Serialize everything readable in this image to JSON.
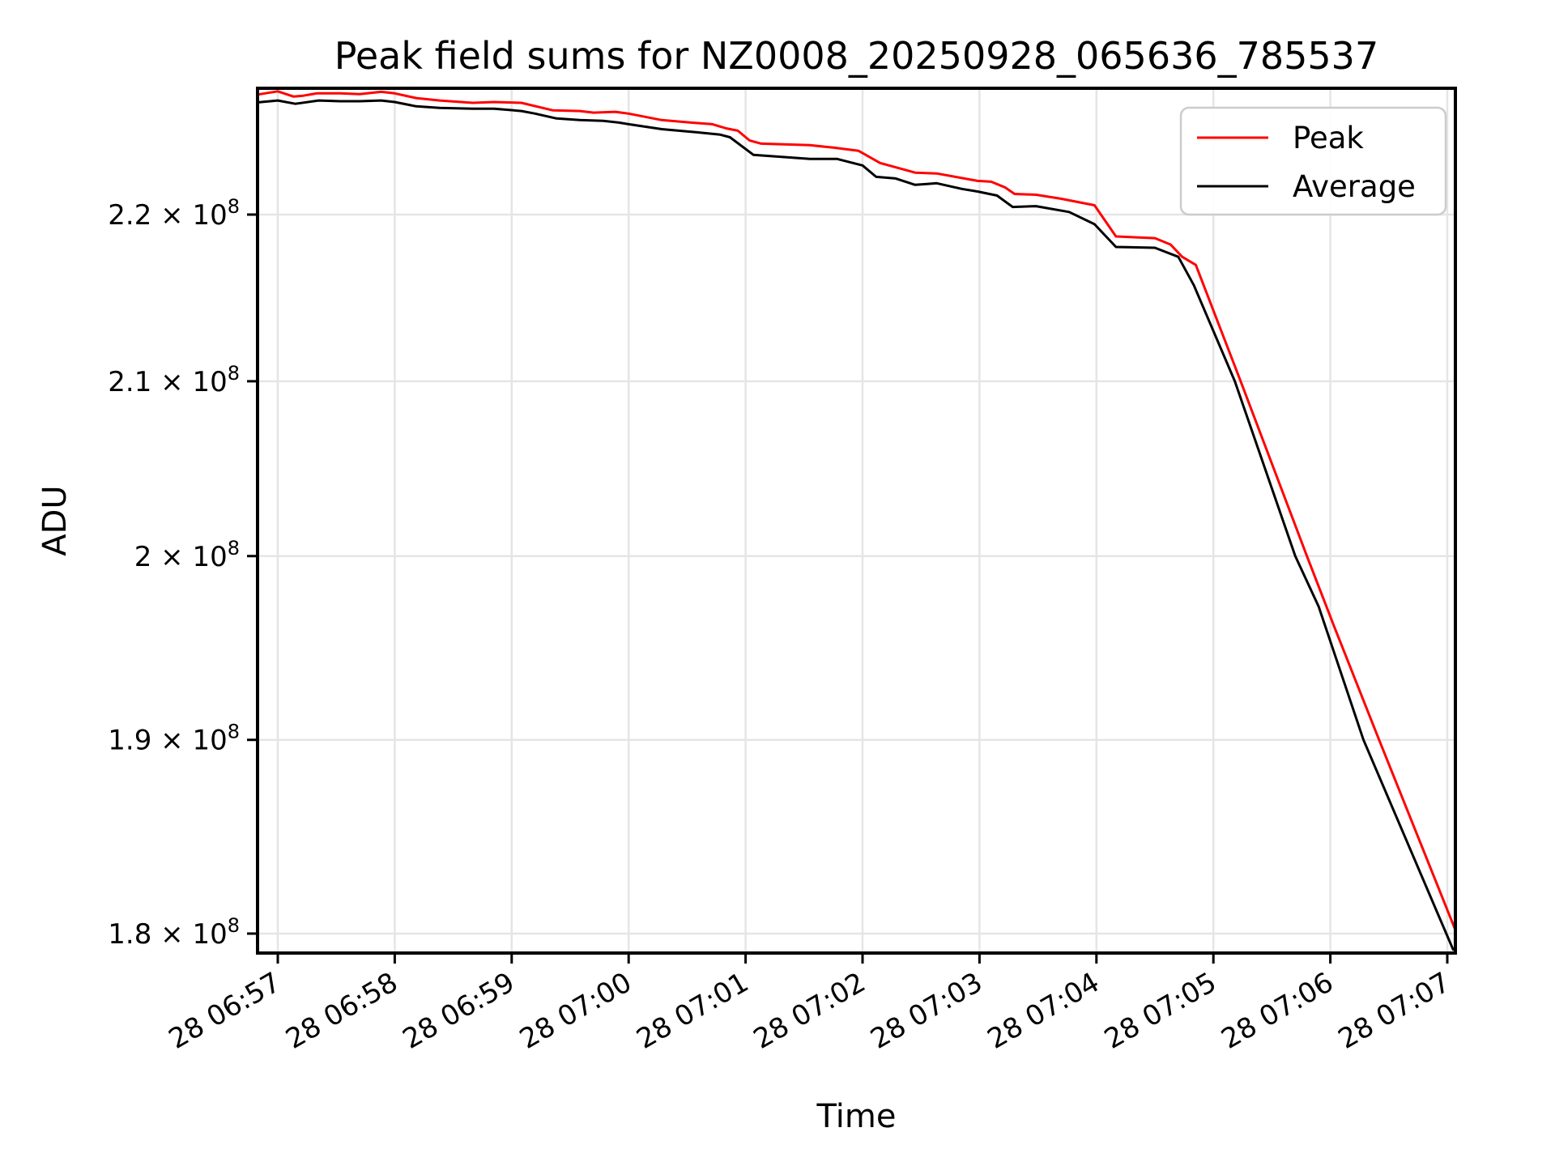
{
  "title": "Peak field sums for NZ0008_20250928_065636_785537",
  "xlabel": "Time",
  "ylabel": "ADU",
  "colors": {
    "peak_line": "#ff0000",
    "average_line": "#000000",
    "grid": "#e5e5e5",
    "spine": "#000000",
    "legend_border": "#cccccc",
    "legend_bg": "#ffffff"
  },
  "legend": {
    "position": "upper right",
    "items": [
      {
        "label": "Peak",
        "color": "#ff0000"
      },
      {
        "label": "Average",
        "color": "#000000"
      }
    ]
  },
  "chart_data": {
    "type": "line",
    "title": "Peak field sums for NZ0008_20250928_065636_785537",
    "xlabel": "Time",
    "ylabel": "ADU",
    "yscale": "log",
    "grid": true,
    "legend_position": "upper right",
    "ylim": [
      179000000,
      228000000
    ],
    "xlim": [
      "06:56:50",
      "07:07:04"
    ],
    "x_ticks": [
      {
        "time": "06:57:00",
        "label": "28 06:57"
      },
      {
        "time": "06:58:00",
        "label": "28 06:58"
      },
      {
        "time": "06:59:00",
        "label": "28 06:59"
      },
      {
        "time": "07:00:00",
        "label": "28 07:00"
      },
      {
        "time": "07:01:00",
        "label": "28 07:01"
      },
      {
        "time": "07:02:00",
        "label": "28 07:02"
      },
      {
        "time": "07:03:00",
        "label": "28 07:03"
      },
      {
        "time": "07:04:00",
        "label": "28 07:04"
      },
      {
        "time": "07:05:00",
        "label": "28 07:05"
      },
      {
        "time": "07:06:00",
        "label": "28 07:06"
      },
      {
        "time": "07:07:00",
        "label": "28 07:07"
      }
    ],
    "y_ticks": [
      {
        "value": 220000000,
        "mantissa": "2.2",
        "exponent": "8",
        "display": "2.2 × 10⁸"
      },
      {
        "value": 210000000,
        "mantissa": "2.1",
        "exponent": "8",
        "display": "2.1 × 10⁸"
      },
      {
        "value": 200000000,
        "mantissa": "2",
        "exponent": "8",
        "display": "2 × 10⁸"
      },
      {
        "value": 190000000,
        "mantissa": "1.9",
        "exponent": "8",
        "display": "1.9 × 10⁸"
      },
      {
        "value": 180000000,
        "mantissa": "1.8",
        "exponent": "8",
        "display": "1.8 × 10⁸"
      }
    ],
    "series": [
      {
        "name": "Peak",
        "color": "#ff0000",
        "points": [
          [
            "06:56:50",
            227500000
          ],
          [
            "06:56:55",
            227600000
          ],
          [
            "06:57:00",
            227700000
          ],
          [
            "06:57:08",
            227370000
          ],
          [
            "06:57:13",
            227420000
          ],
          [
            "06:57:20",
            227570000
          ],
          [
            "06:57:32",
            227570000
          ],
          [
            "06:57:42",
            227520000
          ],
          [
            "06:57:53",
            227670000
          ],
          [
            "06:58:00",
            227570000
          ],
          [
            "06:58:11",
            227270000
          ],
          [
            "06:58:23",
            227120000
          ],
          [
            "06:58:40",
            226970000
          ],
          [
            "06:58:51",
            227020000
          ],
          [
            "06:59:05",
            226970000
          ],
          [
            "06:59:21",
            226500000
          ],
          [
            "06:59:35",
            226450000
          ],
          [
            "06:59:42",
            226350000
          ],
          [
            "06:59:53",
            226400000
          ],
          [
            "07:00:00",
            226290000
          ],
          [
            "07:00:17",
            225880000
          ],
          [
            "07:00:32",
            225720000
          ],
          [
            "07:00:43",
            225620000
          ],
          [
            "07:00:50",
            225360000
          ],
          [
            "07:00:56",
            225210000
          ],
          [
            "07:01:02",
            224600000
          ],
          [
            "07:01:08",
            224400000
          ],
          [
            "07:01:33",
            224300000
          ],
          [
            "07:01:45",
            224150000
          ],
          [
            "07:01:58",
            223950000
          ],
          [
            "07:02:09",
            223190000
          ],
          [
            "07:02:27",
            222590000
          ],
          [
            "07:02:38",
            222540000
          ],
          [
            "07:02:59",
            222080000
          ],
          [
            "07:03:06",
            222030000
          ],
          [
            "07:03:13",
            221680000
          ],
          [
            "07:03:18",
            221270000
          ],
          [
            "07:03:29",
            221220000
          ],
          [
            "07:03:42",
            220970000
          ],
          [
            "07:03:59",
            220570000
          ],
          [
            "07:04:10",
            218660000
          ],
          [
            "07:04:30",
            218560000
          ],
          [
            "07:04:38",
            218170000
          ],
          [
            "07:04:44",
            217420000
          ],
          [
            "07:04:51",
            216930000
          ],
          [
            "07:05:14",
            210000000
          ],
          [
            "07:05:48",
            200000000
          ],
          [
            "07:06:02",
            196100000
          ],
          [
            "07:06:25",
            190000000
          ],
          [
            "07:07:04",
            180220000
          ]
        ]
      },
      {
        "name": "Average",
        "color": "#000000",
        "points": [
          [
            "06:56:50",
            227000000
          ],
          [
            "06:57:00",
            227120000
          ],
          [
            "06:57:09",
            226910000
          ],
          [
            "06:57:21",
            227120000
          ],
          [
            "06:57:32",
            227070000
          ],
          [
            "06:57:42",
            227070000
          ],
          [
            "06:57:53",
            227120000
          ],
          [
            "06:58:00",
            227020000
          ],
          [
            "06:58:11",
            226750000
          ],
          [
            "06:58:23",
            226650000
          ],
          [
            "06:58:40",
            226600000
          ],
          [
            "06:58:51",
            226600000
          ],
          [
            "06:59:05",
            226450000
          ],
          [
            "06:59:12",
            226290000
          ],
          [
            "06:59:23",
            225980000
          ],
          [
            "06:59:35",
            225880000
          ],
          [
            "06:59:47",
            225830000
          ],
          [
            "06:59:55",
            225720000
          ],
          [
            "07:00:00",
            225620000
          ],
          [
            "07:00:17",
            225310000
          ],
          [
            "07:00:35",
            225110000
          ],
          [
            "07:00:47",
            224960000
          ],
          [
            "07:00:52",
            224800000
          ],
          [
            "07:01:04",
            223700000
          ],
          [
            "07:01:33",
            223440000
          ],
          [
            "07:01:47",
            223440000
          ],
          [
            "07:02:00",
            223040000
          ],
          [
            "07:02:07",
            222330000
          ],
          [
            "07:02:17",
            222230000
          ],
          [
            "07:02:27",
            221830000
          ],
          [
            "07:02:38",
            221930000
          ],
          [
            "07:02:51",
            221580000
          ],
          [
            "07:02:59",
            221420000
          ],
          [
            "07:03:09",
            221170000
          ],
          [
            "07:03:17",
            220470000
          ],
          [
            "07:03:29",
            220520000
          ],
          [
            "07:03:46",
            220160000
          ],
          [
            "07:03:59",
            219410000
          ],
          [
            "07:04:10",
            218020000
          ],
          [
            "07:04:30",
            217970000
          ],
          [
            "07:04:42",
            217420000
          ],
          [
            "07:04:50",
            215700000
          ],
          [
            "07:05:11",
            210000000
          ],
          [
            "07:05:42",
            200000000
          ],
          [
            "07:05:54",
            197200000
          ],
          [
            "07:06:17",
            190000000
          ],
          [
            "07:07:03",
            179200000
          ]
        ]
      }
    ]
  }
}
